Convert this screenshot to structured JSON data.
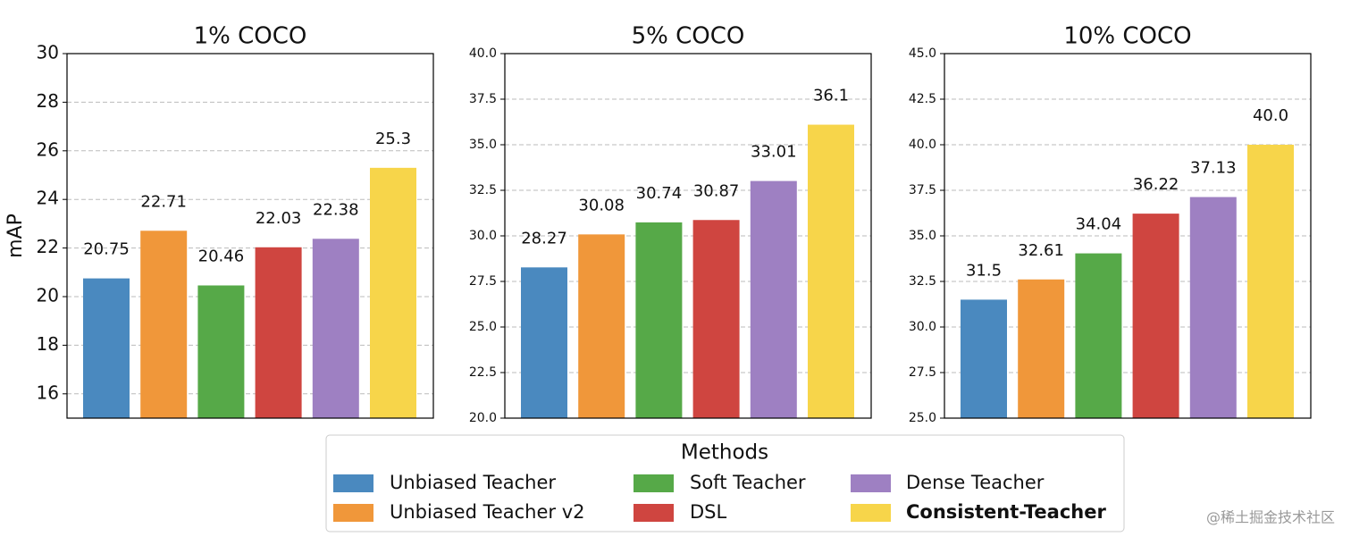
{
  "chart_data": [
    {
      "type": "bar",
      "title": "1% COCO",
      "y_label": "mAP",
      "values": [
        20.75,
        22.71,
        20.46,
        22.03,
        22.38,
        25.3
      ],
      "ylim": [
        15,
        30
      ],
      "yticks": [
        16,
        18,
        20,
        22,
        24,
        26,
        28,
        30
      ],
      "grid": true
    },
    {
      "type": "bar",
      "title": "5% COCO",
      "values": [
        28.27,
        30.08,
        30.74,
        30.87,
        33.01,
        36.1
      ],
      "ylim": [
        20,
        40
      ],
      "yticks": [
        {
          "value": 20,
          "label": "20.0"
        },
        22.5,
        {
          "value": 25,
          "label": "25.0"
        },
        27.5,
        {
          "value": 30,
          "label": "30.0"
        },
        32.5,
        {
          "value": 35,
          "label": "35.0"
        },
        37.5,
        {
          "value": 40,
          "label": "40.0"
        }
      ],
      "grid": true
    },
    {
      "type": "bar",
      "title": "10% COCO",
      "values": [
        31.5,
        32.61,
        34.04,
        36.22,
        37.13,
        40
      ],
      "value_labels": [
        "31.5",
        "32.61",
        "34.04",
        "36.22",
        "37.13",
        "40.0"
      ],
      "ylim": [
        25,
        45
      ],
      "yticks": [
        {
          "value": 25,
          "label": "25.0"
        },
        27.5,
        {
          "value": 30,
          "label": "30.0"
        },
        32.5,
        {
          "value": 35,
          "label": "35.0"
        },
        37.5,
        {
          "value": 40,
          "label": "40.0"
        },
        42.5,
        {
          "value": 45,
          "label": "45.0"
        }
      ],
      "grid": true
    }
  ],
  "legend": {
    "title": "Methods",
    "entries": [
      {
        "name": "Unbiased Teacher",
        "color": "#4a89bf"
      },
      {
        "name": "Unbiased Teacher v2",
        "color": "#f0973a"
      },
      {
        "name": "Soft Teacher",
        "color": "#56a948"
      },
      {
        "name": "DSL",
        "color": "#cf4540"
      },
      {
        "name": "Dense Teacher",
        "color": "#9e80c2"
      },
      {
        "name": "Consistent-Teacher",
        "color": "#f7d54a",
        "bold": true
      }
    ]
  },
  "watermark": "@稀土掘金技术社区"
}
